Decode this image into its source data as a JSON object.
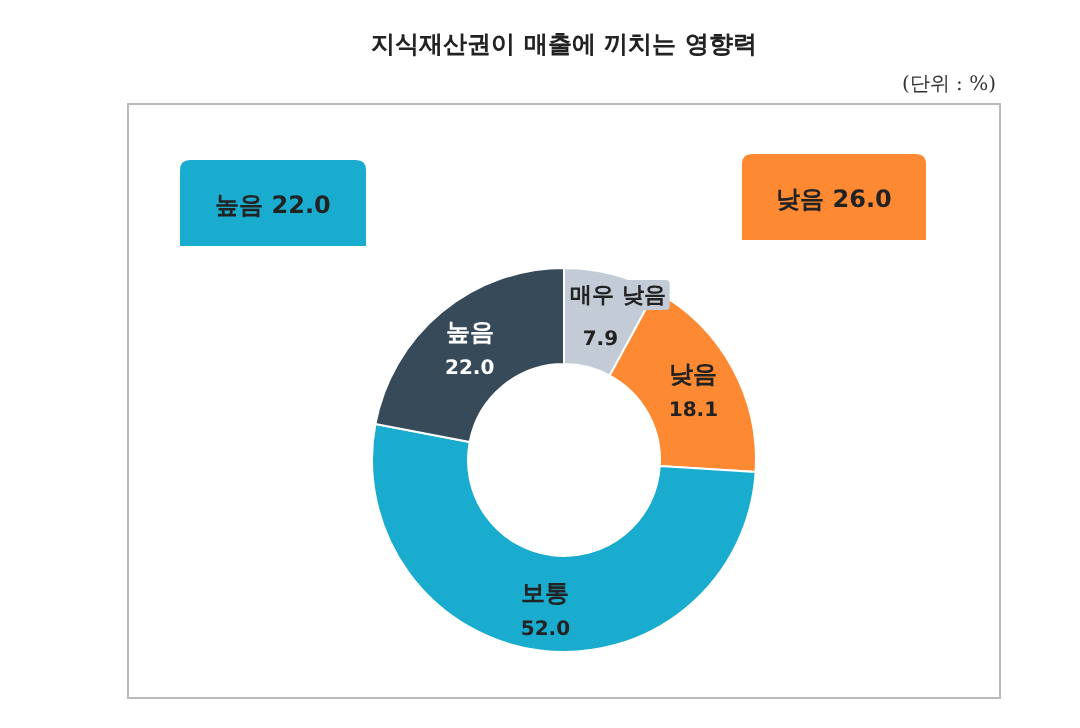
{
  "chart_data": {
    "type": "donut",
    "title": "지식재산권이 매출에 끼치는 영향력",
    "annotations": [
      "(단위 : %)",
      "높음 22.0",
      "낮음 26.0"
    ],
    "categories": [
      "매우 낮음",
      "낮음",
      "보통",
      "높음"
    ],
    "values": [
      7.9,
      18.1,
      52.0,
      22.0
    ],
    "colors": [
      "#c3ccd6",
      "#fd8a33",
      "#1aaccf",
      "#374a5a"
    ],
    "value_labels": [
      "7.9",
      "18.1",
      "52.0",
      "22.0"
    ]
  }
}
